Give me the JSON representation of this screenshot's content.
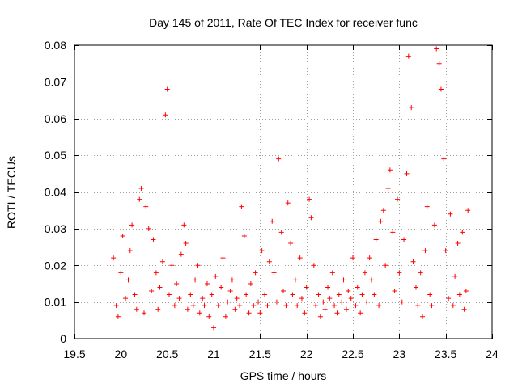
{
  "chart_data": {
    "type": "scatter",
    "title": "Day 145 of 2011, Rate Of TEC Index for receiver func",
    "xlabel": "GPS time / hours",
    "ylabel": "ROTI / TECUs",
    "xlim": [
      19.5,
      24
    ],
    "ylim": [
      0,
      0.08
    ],
    "xticks": [
      19.5,
      20,
      20.5,
      21,
      21.5,
      22,
      22.5,
      23,
      23.5,
      24
    ],
    "xtick_labels": [
      "19.5",
      "20",
      "20.5",
      "21",
      "21.5",
      "22",
      "22.5",
      "23",
      "23.5",
      "24"
    ],
    "yticks": [
      0,
      0.01,
      0.02,
      0.03,
      0.04,
      0.05,
      0.06,
      0.07,
      0.08
    ],
    "ytick_labels": [
      "0",
      "0.01",
      "0.02",
      "0.03",
      "0.04",
      "0.05",
      "0.06",
      "0.07",
      "0.08"
    ],
    "grid": true,
    "marker": "+",
    "marker_color": "#ff0000",
    "series": [
      {
        "x": [
          19.92,
          19.95,
          19.97,
          20.0,
          20.02,
          20.05,
          20.08,
          20.1,
          20.12,
          20.15,
          20.17,
          20.2,
          20.22,
          20.25,
          20.27,
          20.3,
          20.33,
          20.35,
          20.38,
          20.4,
          20.42,
          20.45,
          20.48,
          20.5,
          20.52,
          20.55,
          20.58,
          20.6,
          20.63,
          20.65,
          20.68,
          20.7,
          20.72,
          20.75,
          20.78,
          20.8,
          20.83,
          20.85,
          20.88,
          20.9,
          20.93,
          20.95,
          20.98,
          21.0,
          21.02,
          21.05,
          21.08,
          21.1,
          21.13,
          21.15,
          21.18,
          21.2,
          21.23,
          21.25,
          21.28,
          21.3,
          21.33,
          21.35,
          21.38,
          21.4,
          21.43,
          21.45,
          21.48,
          21.5,
          21.52,
          21.55,
          21.58,
          21.6,
          21.63,
          21.65,
          21.68,
          21.7,
          21.73,
          21.75,
          21.78,
          21.8,
          21.83,
          21.85,
          21.88,
          21.9,
          21.93,
          21.95,
          21.98,
          22.0,
          22.03,
          22.05,
          22.08,
          22.1,
          22.13,
          22.15,
          22.18,
          22.2,
          22.23,
          22.25,
          22.28,
          22.3,
          22.33,
          22.35,
          22.38,
          22.4,
          22.43,
          22.45,
          22.48,
          22.5,
          22.53,
          22.55,
          22.58,
          22.6,
          22.63,
          22.65,
          22.68,
          22.7,
          22.73,
          22.75,
          22.78,
          22.8,
          22.83,
          22.85,
          22.88,
          22.9,
          22.93,
          22.95,
          22.98,
          23.0,
          23.03,
          23.05,
          23.08,
          23.1,
          23.13,
          23.15,
          23.18,
          23.2,
          23.23,
          23.25,
          23.28,
          23.3,
          23.33,
          23.35,
          23.38,
          23.4,
          23.43,
          23.45,
          23.48,
          23.5,
          23.53,
          23.55,
          23.58,
          23.6,
          23.63,
          23.65,
          23.68,
          23.7,
          23.72,
          23.74
        ],
        "y": [
          0.022,
          0.009,
          0.006,
          0.018,
          0.028,
          0.011,
          0.016,
          0.024,
          0.031,
          0.012,
          0.008,
          0.038,
          0.041,
          0.007,
          0.036,
          0.03,
          0.013,
          0.027,
          0.018,
          0.008,
          0.014,
          0.021,
          0.061,
          0.068,
          0.012,
          0.02,
          0.009,
          0.015,
          0.011,
          0.023,
          0.031,
          0.026,
          0.008,
          0.012,
          0.009,
          0.016,
          0.02,
          0.007,
          0.011,
          0.009,
          0.015,
          0.006,
          0.012,
          0.003,
          0.017,
          0.009,
          0.014,
          0.022,
          0.006,
          0.01,
          0.013,
          0.016,
          0.008,
          0.011,
          0.009,
          0.036,
          0.028,
          0.012,
          0.007,
          0.015,
          0.009,
          0.018,
          0.01,
          0.007,
          0.024,
          0.012,
          0.009,
          0.021,
          0.032,
          0.018,
          0.01,
          0.049,
          0.029,
          0.013,
          0.009,
          0.037,
          0.026,
          0.012,
          0.016,
          0.009,
          0.022,
          0.011,
          0.007,
          0.014,
          0.038,
          0.033,
          0.02,
          0.009,
          0.012,
          0.006,
          0.01,
          0.008,
          0.014,
          0.011,
          0.018,
          0.009,
          0.007,
          0.012,
          0.01,
          0.016,
          0.008,
          0.013,
          0.011,
          0.022,
          0.009,
          0.014,
          0.007,
          0.012,
          0.018,
          0.01,
          0.022,
          0.016,
          0.012,
          0.027,
          0.009,
          0.032,
          0.035,
          0.02,
          0.041,
          0.046,
          0.029,
          0.013,
          0.038,
          0.018,
          0.01,
          0.027,
          0.045,
          0.077,
          0.063,
          0.021,
          0.014,
          0.009,
          0.018,
          0.006,
          0.024,
          0.036,
          0.012,
          0.009,
          0.031,
          0.079,
          0.075,
          0.068,
          0.049,
          0.024,
          0.011,
          0.034,
          0.009,
          0.017,
          0.026,
          0.012,
          0.029,
          0.008,
          0.013,
          0.035
        ]
      }
    ]
  }
}
